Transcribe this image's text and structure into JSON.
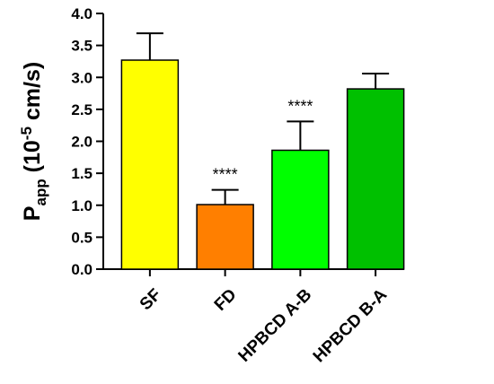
{
  "chart_data": {
    "type": "bar",
    "title": "",
    "xlabel": "",
    "ylabel": {
      "main": "P",
      "subscript": "app",
      "unit_prefix": " (10",
      "superscript": "-5",
      "unit_suffix": " cm/s)"
    },
    "ylim": [
      0,
      4.0
    ],
    "yticks": [
      "0.0",
      "0.5",
      "1.0",
      "1.5",
      "2.0",
      "2.5",
      "3.0",
      "3.5",
      "4.0"
    ],
    "categories": [
      "SF",
      "FD",
      "HPBCD A-B",
      "HPBCD B-A"
    ],
    "values": [
      3.27,
      1.01,
      1.86,
      2.82
    ],
    "error_upper": [
      0.42,
      0.23,
      0.45,
      0.24
    ],
    "significance": [
      "",
      "****",
      "****",
      ""
    ],
    "colors": [
      "#ffff00",
      "#ff7f00",
      "#00ff00",
      "#00c000"
    ],
    "grid": false,
    "legend": "none"
  }
}
